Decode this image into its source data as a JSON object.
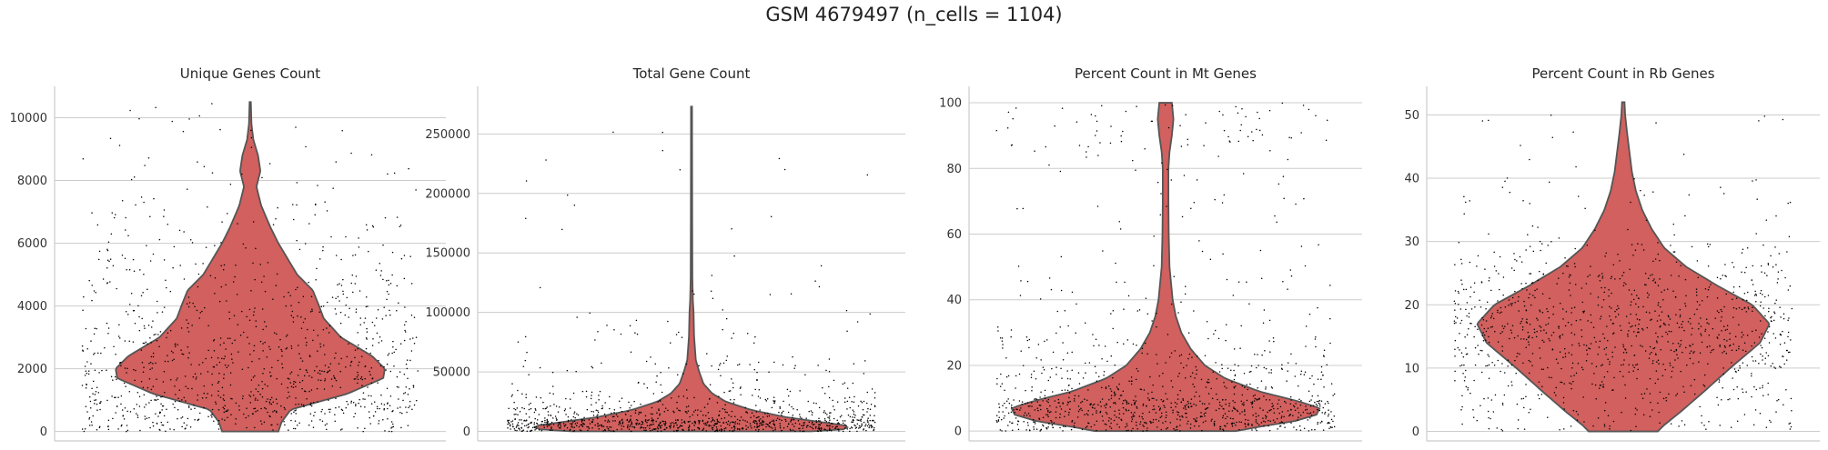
{
  "figure": {
    "suptitle": "GSM 4679497 (n_cells = 1104)"
  },
  "colors": {
    "violin_fill": "#d1605e",
    "violin_edge": "#555555",
    "points": "#000000",
    "grid": "#cccccc",
    "axes": "#cccccc"
  },
  "chart_data": [
    {
      "type": "violin",
      "title": "Unique Genes Count",
      "xlabel": "",
      "ylabel": "",
      "ylim": [
        -300,
        11000
      ],
      "yticks": [
        0,
        2000,
        4000,
        6000,
        8000,
        10000
      ],
      "ytick_labels": [
        "0",
        "2000",
        "4000",
        "6000",
        "8000",
        "10000"
      ],
      "grid": true,
      "n_points": 1104,
      "density_profile": [
        [
          0,
          0.18
        ],
        [
          300,
          0.2
        ],
        [
          700,
          0.26
        ],
        [
          1200,
          0.62
        ],
        [
          1700,
          0.85
        ],
        [
          2000,
          0.86
        ],
        [
          2400,
          0.78
        ],
        [
          3000,
          0.58
        ],
        [
          3600,
          0.47
        ],
        [
          4000,
          0.44
        ],
        [
          4500,
          0.4
        ],
        [
          5000,
          0.3
        ],
        [
          5500,
          0.24
        ],
        [
          6000,
          0.18
        ],
        [
          6500,
          0.13
        ],
        [
          7200,
          0.07
        ],
        [
          7800,
          0.04
        ],
        [
          8300,
          0.065
        ],
        [
          8800,
          0.05
        ],
        [
          9300,
          0.02
        ],
        [
          9800,
          0.008
        ],
        [
          10500,
          0.004
        ]
      ],
      "violin_range": [
        0,
        10500
      ],
      "points_by_band": [
        [
          0,
          1000,
          300
        ],
        [
          1000,
          2000,
          240
        ],
        [
          2000,
          3000,
          190
        ],
        [
          3000,
          4000,
          130
        ],
        [
          4000,
          5000,
          90
        ],
        [
          5000,
          6000,
          60
        ],
        [
          6000,
          7000,
          40
        ],
        [
          7000,
          8500,
          30
        ],
        [
          8500,
          10500,
          24
        ]
      ]
    },
    {
      "type": "violin",
      "title": "Total Gene Count",
      "xlabel": "",
      "ylabel": "",
      "ylim": [
        -8000,
        290000
      ],
      "yticks": [
        0,
        50000,
        100000,
        150000,
        200000,
        250000
      ],
      "ytick_labels": [
        "0",
        "50000",
        "100000",
        "150000",
        "200000",
        "250000"
      ],
      "grid": true,
      "n_points": 1104,
      "density_profile": [
        [
          0,
          0.7
        ],
        [
          2000,
          0.92
        ],
        [
          5000,
          0.9
        ],
        [
          8000,
          0.75
        ],
        [
          12000,
          0.55
        ],
        [
          18000,
          0.35
        ],
        [
          25000,
          0.2
        ],
        [
          32000,
          0.12
        ],
        [
          40000,
          0.07
        ],
        [
          50000,
          0.045
        ],
        [
          60000,
          0.025
        ],
        [
          80000,
          0.015
        ],
        [
          100000,
          0.012
        ],
        [
          110000,
          0.008
        ],
        [
          130000,
          0.005
        ],
        [
          180000,
          0.004
        ],
        [
          273000,
          0.003
        ]
      ],
      "violin_range": [
        0,
        273000
      ],
      "points_by_band": [
        [
          0,
          10000,
          640
        ],
        [
          10000,
          20000,
          210
        ],
        [
          20000,
          35000,
          120
        ],
        [
          35000,
          60000,
          70
        ],
        [
          60000,
          100000,
          35
        ],
        [
          100000,
          150000,
          14
        ],
        [
          150000,
          275000,
          15
        ]
      ]
    },
    {
      "type": "violin",
      "title": "Percent Count in Mt Genes",
      "xlabel": "",
      "ylabel": "",
      "ylim": [
        -3,
        105
      ],
      "yticks": [
        0,
        20,
        40,
        60,
        80,
        100
      ],
      "ytick_labels": [
        "0",
        "20",
        "40",
        "60",
        "80",
        "100"
      ],
      "grid": true,
      "n_points": 1104,
      "density_profile": [
        [
          0,
          0.45
        ],
        [
          1.5,
          0.62
        ],
        [
          3,
          0.82
        ],
        [
          5,
          0.96
        ],
        [
          7,
          0.98
        ],
        [
          9,
          0.85
        ],
        [
          12,
          0.6
        ],
        [
          16,
          0.38
        ],
        [
          20,
          0.25
        ],
        [
          25,
          0.16
        ],
        [
          30,
          0.1
        ],
        [
          35,
          0.065
        ],
        [
          40,
          0.045
        ],
        [
          45,
          0.035
        ],
        [
          50,
          0.025
        ],
        [
          60,
          0.02
        ],
        [
          70,
          0.018
        ],
        [
          80,
          0.018
        ],
        [
          85,
          0.025
        ],
        [
          90,
          0.04
        ],
        [
          95,
          0.05
        ],
        [
          100,
          0.04
        ]
      ],
      "violin_range": [
        0,
        100
      ],
      "points_by_band": [
        [
          0,
          5,
          300
        ],
        [
          5,
          10,
          330
        ],
        [
          10,
          20,
          200
        ],
        [
          20,
          30,
          90
        ],
        [
          30,
          50,
          60
        ],
        [
          50,
          85,
          50
        ],
        [
          85,
          100,
          74
        ]
      ]
    },
    {
      "type": "violin",
      "title": "Percent Count in Rb Genes",
      "xlabel": "",
      "ylabel": "",
      "ylim": [
        -1.5,
        54.5
      ],
      "yticks": [
        0,
        10,
        20,
        30,
        40,
        50
      ],
      "ytick_labels": [
        "0",
        "10",
        "20",
        "30",
        "40",
        "50"
      ],
      "grid": true,
      "n_points": 1104,
      "density_profile": [
        [
          0,
          0.22
        ],
        [
          1,
          0.26
        ],
        [
          3,
          0.36
        ],
        [
          6,
          0.5
        ],
        [
          10,
          0.68
        ],
        [
          14,
          0.87
        ],
        [
          17,
          0.93
        ],
        [
          20,
          0.82
        ],
        [
          23,
          0.6
        ],
        [
          26,
          0.4
        ],
        [
          29,
          0.26
        ],
        [
          32,
          0.18
        ],
        [
          35,
          0.12
        ],
        [
          38,
          0.08
        ],
        [
          41,
          0.055
        ],
        [
          44,
          0.04
        ],
        [
          47,
          0.025
        ],
        [
          50,
          0.012
        ],
        [
          52,
          0.008
        ]
      ],
      "violin_range": [
        0,
        52
      ],
      "points_by_band": [
        [
          0,
          5,
          90
        ],
        [
          5,
          10,
          140
        ],
        [
          10,
          15,
          260
        ],
        [
          15,
          20,
          290
        ],
        [
          20,
          25,
          180
        ],
        [
          25,
          30,
          90
        ],
        [
          30,
          40,
          40
        ],
        [
          40,
          50,
          14
        ]
      ]
    }
  ]
}
